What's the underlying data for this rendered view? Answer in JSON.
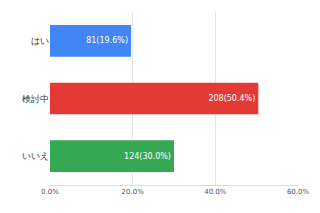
{
  "chart_data": {
    "type": "bar",
    "orientation": "horizontal",
    "categories": [
      "はい",
      "検討中",
      "いいえ"
    ],
    "values": [
      19.6,
      50.4,
      30.0
    ],
    "value_labels": [
      "81(19.6%)",
      "208(50.4%)",
      "124(30.0%)"
    ],
    "colors": [
      "#4285f4",
      "#e53935",
      "#34a853"
    ],
    "xlim": [
      0,
      60
    ],
    "xticks": [
      {
        "value": 0,
        "label": "0.0%"
      },
      {
        "value": 20,
        "label": "20.0%"
      },
      {
        "value": 40,
        "label": "40.0%"
      },
      {
        "value": 60,
        "label": "60.0%"
      }
    ],
    "grid": true,
    "data_labels": true
  }
}
